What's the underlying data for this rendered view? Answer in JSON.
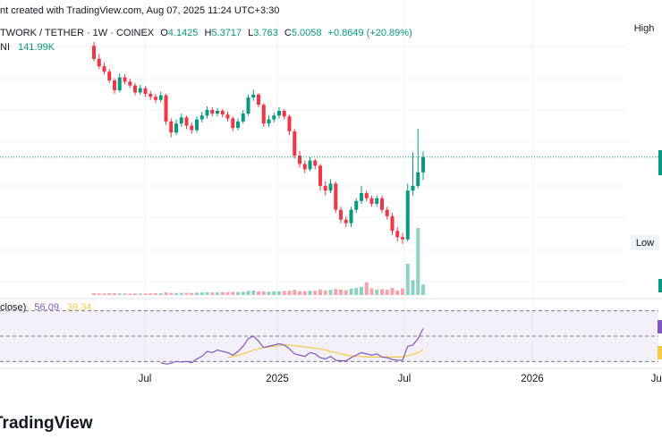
{
  "header": {
    "created": "nt created with TradingView.com, Aug 07, 2025 11:24 UTC+3:30",
    "symbol": "TWORK / TETHER · 1W · COINEX",
    "ohlc_letters": [
      "O",
      "H",
      "L",
      "C"
    ],
    "change": "+0.8649 (+20.89%)",
    "volume_name": "NI",
    "footer_logo": "TradingView"
  },
  "chart_data": {
    "type": "candlestick",
    "log_scale": true,
    "ylim": [
      0.9,
      28.3
    ],
    "up_color": "#089981",
    "down_color": "#f23645",
    "last_price_line": true,
    "price_tags": [
      "High",
      "Low"
    ],
    "open": [
      20,
      17,
      15.5,
      14.5,
      13,
      11.5,
      13.5,
      12.8,
      12.2,
      11.2,
      11.8,
      11,
      10.6,
      10.2,
      10.8,
      7.8,
      6.8,
      7.6,
      8.2,
      7.4,
      7.0,
      8.0,
      8.4,
      9.0,
      8.6,
      8.9,
      8.5,
      8.1,
      7.2,
      7.8,
      8.6,
      10.5,
      10.9,
      9.6,
      7.6,
      8.0,
      8.4,
      8.9,
      8.3,
      6.9,
      5.1,
      4.6,
      4.3,
      4.8,
      4.5,
      3.5,
      3.3,
      3.6,
      2.6,
      2.3,
      2.2,
      2.6,
      2.9,
      3.2,
      3.0,
      2.8,
      3.0,
      2.6,
      2.4,
      2.0,
      1.85,
      1.8,
      3.3,
      3.5,
      4.1425
    ],
    "high": [
      21,
      18,
      16.2,
      15,
      13.4,
      14.2,
      14,
      13.3,
      12.6,
      12.3,
      12.1,
      11.4,
      11,
      11.3,
      11,
      8.1,
      8,
      8.6,
      8.4,
      7.7,
      8.3,
      8.8,
      9.4,
      9.3,
      9.2,
      9.1,
      8.8,
      8.3,
      8.1,
      9,
      10.9,
      11.6,
      11.1,
      9.8,
      8.4,
      8.7,
      9.3,
      9.1,
      8.5,
      7.1,
      5.4,
      4.8,
      5.0,
      4.9,
      4.6,
      3.7,
      3.8,
      3.7,
      2.7,
      2.4,
      2.7,
      3.0,
      3.5,
      3.3,
      3.1,
      3.1,
      3.1,
      2.7,
      2.5,
      2.1,
      1.95,
      3.6,
      5.3,
      7.1,
      5.3717
    ],
    "low": [
      16.5,
      15,
      14,
      12.6,
      11,
      11.2,
      12.4,
      11.8,
      10.8,
      10.9,
      10.6,
      10.2,
      9.8,
      9.9,
      7.5,
      6.4,
      6.6,
      7.3,
      7.1,
      6.7,
      6.8,
      7.7,
      8.1,
      8.3,
      8.3,
      8.2,
      7.8,
      6.9,
      7.0,
      7.6,
      8.4,
      10.1,
      9.3,
      7.3,
      7.3,
      7.7,
      8.1,
      8.0,
      6.6,
      4.9,
      4.4,
      4.1,
      4.2,
      4.3,
      3.3,
      3.1,
      3.2,
      2.5,
      2.2,
      2.1,
      2.1,
      2.5,
      2.8,
      2.9,
      2.7,
      2.7,
      2.5,
      2.3,
      1.9,
      1.75,
      1.7,
      1.75,
      3.1,
      3.4,
      3.763
    ],
    "close": [
      17,
      15.5,
      14.5,
      13,
      11.5,
      13.5,
      12.8,
      12.2,
      11.2,
      11.8,
      11,
      10.6,
      10.2,
      10.8,
      7.8,
      6.8,
      7.6,
      8.2,
      7.4,
      7.0,
      8.0,
      8.4,
      9.0,
      8.6,
      8.9,
      8.5,
      8.1,
      7.2,
      7.8,
      8.6,
      10.5,
      10.9,
      9.6,
      7.6,
      8.0,
      8.4,
      8.9,
      8.3,
      6.9,
      5.1,
      4.6,
      4.3,
      4.8,
      4.5,
      3.5,
      3.3,
      3.6,
      2.6,
      2.3,
      2.2,
      2.6,
      2.9,
      3.2,
      3.0,
      2.8,
      3.0,
      2.6,
      2.4,
      2.0,
      1.85,
      1.8,
      3.3,
      3.5,
      4.1425,
      5.0058
    ],
    "volume": {
      "ylim": [
        0,
        1200000
      ],
      "last_label": "141.99K",
      "values": [
        25000,
        22000,
        20000,
        24000,
        26000,
        22000,
        20000,
        18000,
        21000,
        19000,
        20000,
        22000,
        24000,
        23000,
        35000,
        30000,
        26000,
        28000,
        30000,
        27000,
        32000,
        35000,
        38000,
        34000,
        36000,
        40000,
        37000,
        42000,
        39000,
        45000,
        55000,
        60000,
        48000,
        50000,
        45000,
        52000,
        48000,
        55000,
        58000,
        70000,
        52000,
        50000,
        58000,
        55000,
        75000,
        62000,
        70000,
        80000,
        72000,
        65000,
        85000,
        95000,
        110000,
        170000,
        90000,
        75000,
        80000,
        70000,
        95000,
        60000,
        90000,
        420000,
        200000,
        900000,
        141990
      ]
    },
    "rsi": {
      "label": "close)",
      "ylim": [
        26,
        74
      ],
      "levels": [
        70,
        50,
        30
      ],
      "color": "#7e57c2",
      "ma_color": "#f7c948",
      "values": [
        null,
        null,
        null,
        null,
        null,
        null,
        null,
        null,
        null,
        null,
        null,
        null,
        null,
        29,
        28,
        28.5,
        30,
        29.5,
        30,
        29,
        32,
        34,
        38,
        37,
        39,
        38,
        37,
        35,
        38,
        42,
        48,
        50,
        46,
        41,
        42,
        43,
        44,
        43,
        40,
        36,
        35,
        34,
        37,
        36,
        33,
        32,
        34,
        31,
        30.5,
        30.5,
        33,
        35,
        37,
        36,
        35,
        36,
        33.5,
        33,
        31.5,
        31,
        31,
        42,
        43,
        48,
        56.09
      ],
      "ma_values": [
        null,
        null,
        null,
        null,
        null,
        null,
        null,
        null,
        null,
        null,
        null,
        null,
        null,
        null,
        null,
        null,
        null,
        null,
        null,
        null,
        null,
        null,
        null,
        null,
        null,
        null,
        33,
        34,
        35,
        36,
        37.5,
        39,
        40,
        41,
        41.5,
        42,
        42.5,
        43,
        43,
        42.5,
        42,
        41.5,
        41,
        40.5,
        40,
        39,
        38,
        37,
        36,
        35,
        34.5,
        34,
        34,
        33.5,
        33.5,
        33.5,
        33.5,
        33.5,
        33.5,
        33.5,
        33.5,
        34.5,
        35.5,
        37,
        39.34
      ]
    },
    "xtick_labels": [
      "Jul",
      "2025",
      "Jul",
      "2026",
      "Jul"
    ]
  }
}
